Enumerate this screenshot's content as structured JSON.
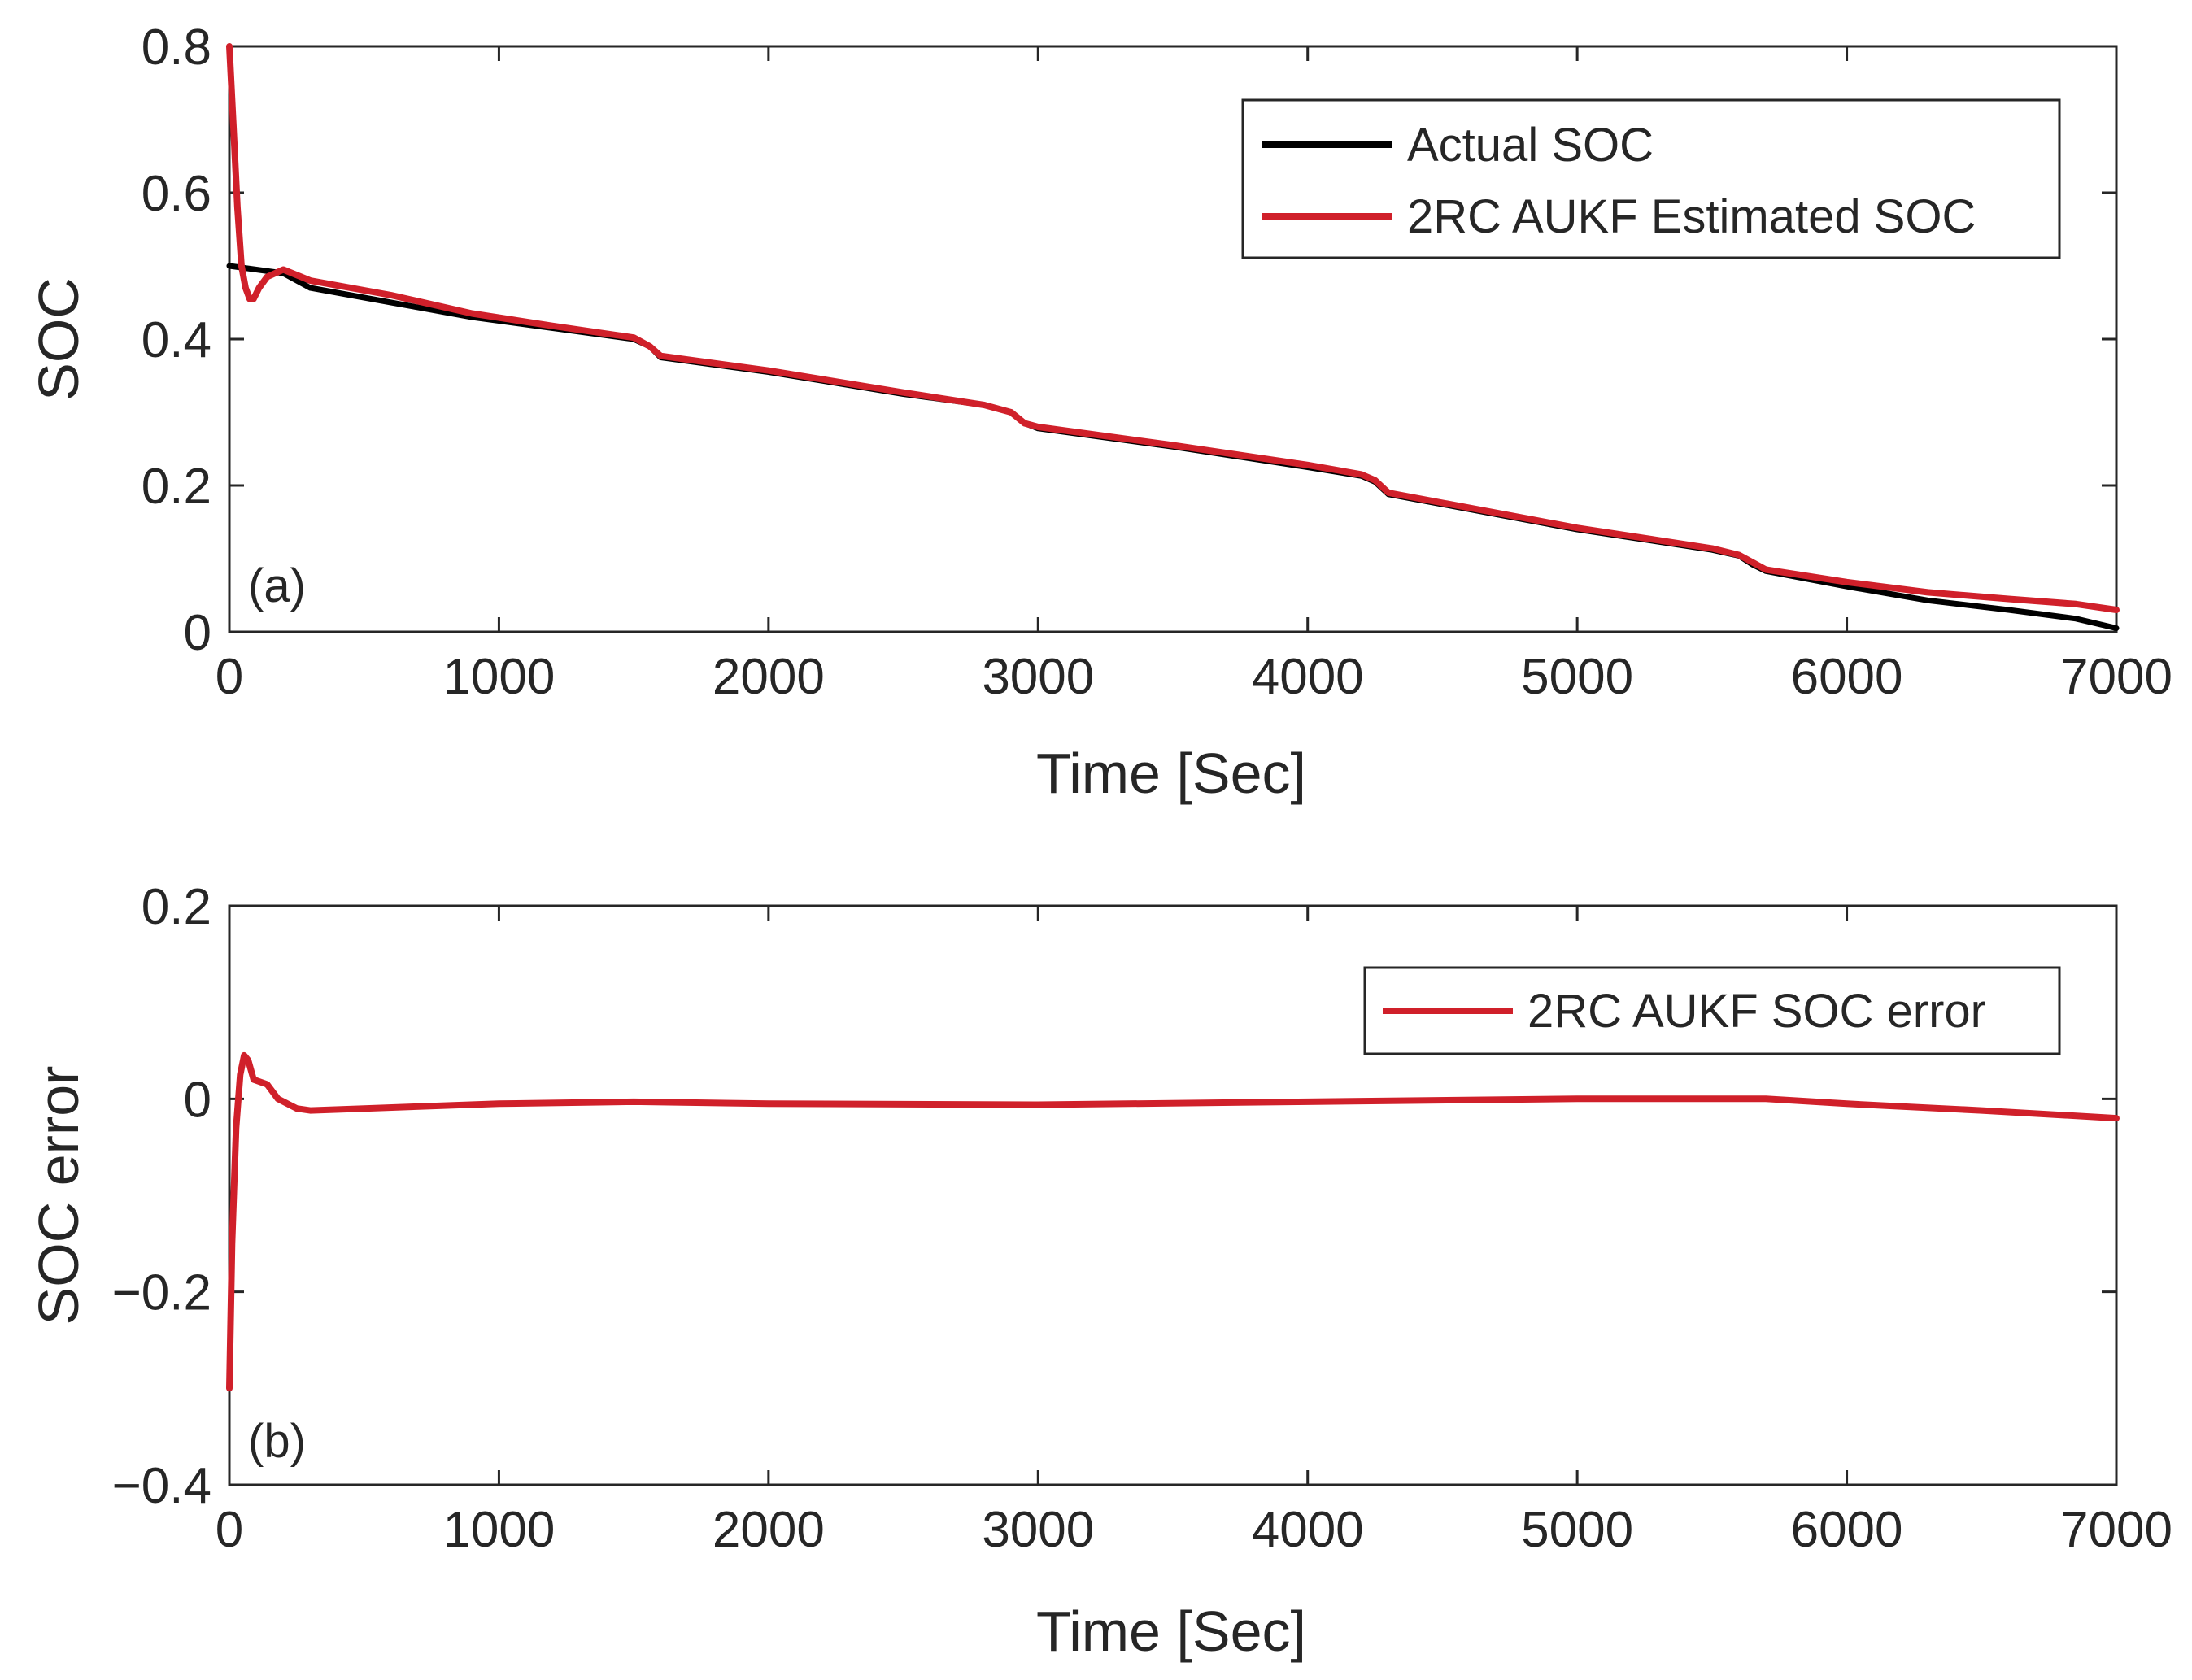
{
  "chart_data": [
    {
      "type": "line",
      "panel_label": "(a)",
      "xlabel": "Time [Sec]",
      "ylabel": "SOC",
      "xlim": [
        0,
        7000
      ],
      "ylim": [
        0,
        0.8
      ],
      "xticks": [
        0,
        1000,
        2000,
        3000,
        4000,
        5000,
        6000,
        7000
      ],
      "yticks": [
        0,
        0.2,
        0.4,
        0.6,
        0.8
      ],
      "xtick_labels": [
        "0",
        "1000",
        "2000",
        "3000",
        "4000",
        "5000",
        "6000",
        "7000"
      ],
      "ytick_labels": [
        "0",
        "0.2",
        "0.4",
        "0.6",
        "0.8"
      ],
      "legend_position": "top-right",
      "grid": false,
      "series": [
        {
          "name": "Actual SOC",
          "color": "#000000",
          "x": [
            0,
            200,
            300,
            600,
            900,
            1200,
            1500,
            1560,
            1600,
            2000,
            2500,
            2800,
            2900,
            2950,
            3000,
            3500,
            4000,
            4200,
            4250,
            4300,
            5000,
            5500,
            5600,
            5650,
            5700,
            6000,
            6300,
            6600,
            6850,
            7000
          ],
          "y": [
            0.5,
            0.49,
            0.47,
            0.45,
            0.43,
            0.415,
            0.4,
            0.39,
            0.375,
            0.355,
            0.325,
            0.31,
            0.3,
            0.285,
            0.278,
            0.253,
            0.225,
            0.213,
            0.205,
            0.188,
            0.14,
            0.112,
            0.104,
            0.092,
            0.083,
            0.062,
            0.043,
            0.03,
            0.018,
            0.005
          ]
        },
        {
          "name": "2RC AUKF Estimated SOC",
          "color": "#d0202a",
          "x": [
            0,
            15,
            30,
            45,
            60,
            75,
            90,
            110,
            140,
            200,
            300,
            600,
            900,
            1200,
            1500,
            1560,
            1600,
            2000,
            2500,
            2800,
            2900,
            2950,
            3000,
            3500,
            4000,
            4200,
            4250,
            4300,
            5000,
            5500,
            5600,
            5650,
            5700,
            6000,
            6300,
            6600,
            6850,
            7000
          ],
          "y": [
            0.8,
            0.69,
            0.58,
            0.5,
            0.47,
            0.455,
            0.455,
            0.47,
            0.485,
            0.495,
            0.48,
            0.46,
            0.435,
            0.418,
            0.402,
            0.39,
            0.377,
            0.357,
            0.327,
            0.31,
            0.3,
            0.285,
            0.28,
            0.255,
            0.228,
            0.215,
            0.207,
            0.19,
            0.142,
            0.114,
            0.105,
            0.095,
            0.085,
            0.068,
            0.054,
            0.045,
            0.038,
            0.03
          ]
        }
      ]
    },
    {
      "type": "line",
      "panel_label": "(b)",
      "xlabel": "Time [Sec]",
      "ylabel": "SOC error",
      "xlim": [
        0,
        7000
      ],
      "ylim": [
        -0.4,
        0.2
      ],
      "xticks": [
        0,
        1000,
        2000,
        3000,
        4000,
        5000,
        6000,
        7000
      ],
      "yticks": [
        -0.4,
        -0.2,
        0,
        0.2
      ],
      "xtick_labels": [
        "0",
        "1000",
        "2000",
        "3000",
        "4000",
        "5000",
        "6000",
        "7000"
      ],
      "ytick_labels": [
        "−0.4",
        "−0.2",
        "0",
        "0.2"
      ],
      "legend_position": "top-right",
      "grid": false,
      "series": [
        {
          "name": "2RC AUKF SOC error",
          "color": "#d0202a",
          "x": [
            0,
            10,
            25,
            40,
            55,
            70,
            90,
            110,
            140,
            180,
            250,
            300,
            500,
            1000,
            1500,
            2000,
            3000,
            4000,
            5000,
            5700,
            6000,
            6500,
            7000
          ],
          "y": [
            -0.3,
            -0.15,
            -0.03,
            0.025,
            0.045,
            0.04,
            0.02,
            0.018,
            0.015,
            0.0,
            -0.01,
            -0.012,
            -0.01,
            -0.005,
            -0.003,
            -0.005,
            -0.006,
            -0.003,
            0.0,
            0.0,
            -0.005,
            -0.012,
            -0.02
          ]
        }
      ]
    }
  ]
}
